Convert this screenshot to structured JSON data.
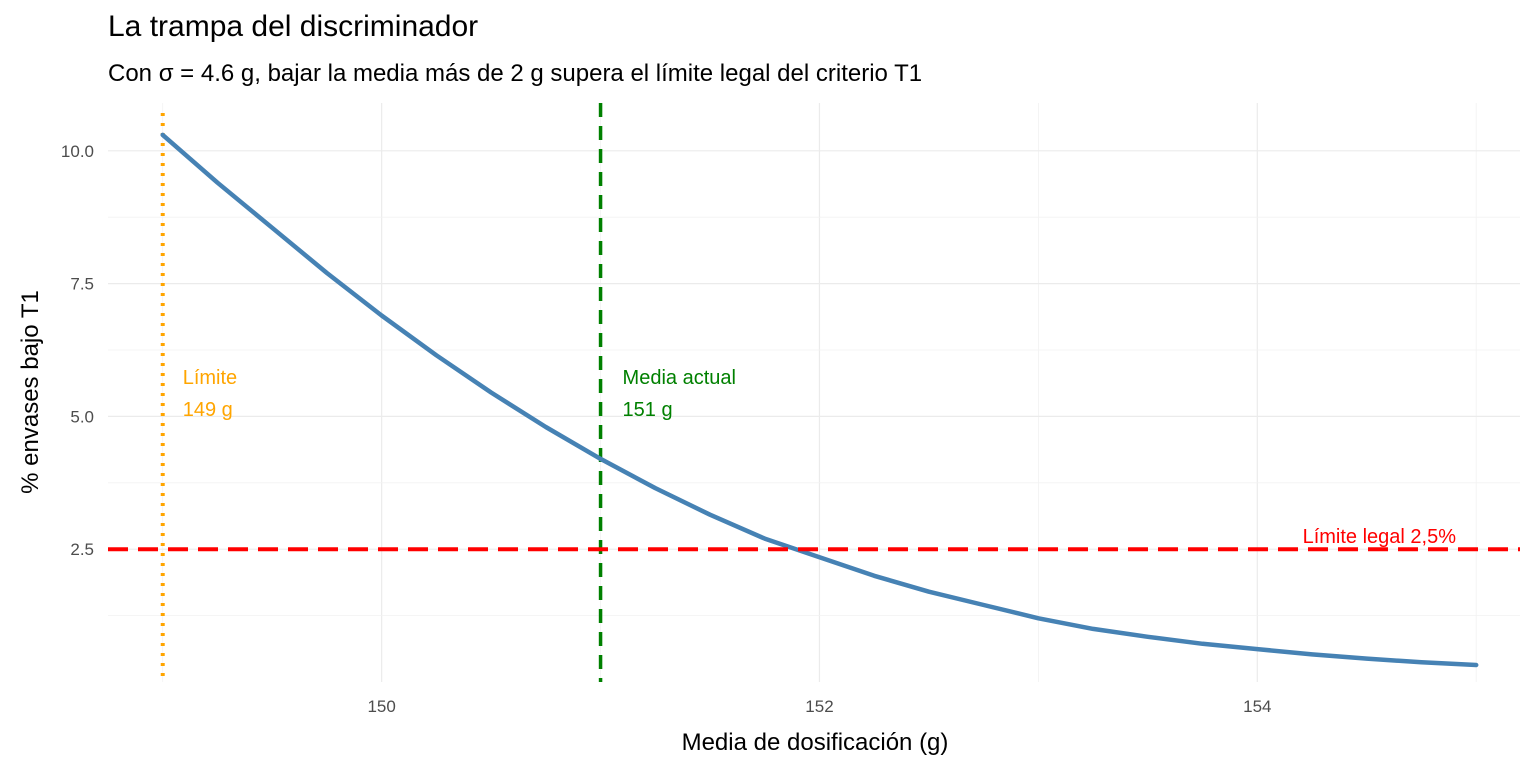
{
  "chart_data": {
    "type": "line",
    "title": "La trampa del discriminador",
    "subtitle": "Con σ = 4.6 g, bajar la media más de 2 g supera el límite legal del criterio T1",
    "xlabel": "Media de dosificación (g)",
    "ylabel": "% envases bajo T1",
    "xlim": [
      148.75,
      155.2
    ],
    "ylim": [
      0,
      10.9
    ],
    "x_ticks": [
      150,
      152,
      154
    ],
    "x_tick_labels": [
      "150",
      "152",
      "154"
    ],
    "y_ticks": [
      2.5,
      5.0,
      7.5,
      10.0
    ],
    "y_tick_labels": [
      "2.5",
      "5.0",
      "7.5",
      "10.0"
    ],
    "grid": true,
    "series": [
      {
        "color": "#4682B4",
        "x": [
          149.0,
          149.25,
          149.5,
          149.75,
          150.0,
          150.25,
          150.5,
          150.75,
          151.0,
          151.25,
          151.5,
          151.75,
          152.0,
          152.25,
          152.5,
          152.75,
          153.0,
          153.25,
          153.5,
          153.75,
          154.0,
          154.25,
          154.5,
          154.75,
          155.0
        ],
        "y": [
          10.3,
          9.4,
          8.55,
          7.7,
          6.9,
          6.15,
          5.45,
          4.8,
          4.2,
          3.65,
          3.15,
          2.7,
          2.35,
          2.0,
          1.7,
          1.45,
          1.2,
          1.0,
          0.85,
          0.72,
          0.62,
          0.52,
          0.44,
          0.37,
          0.32
        ]
      }
    ],
    "annotations": {
      "limit": {
        "x": 149,
        "color": "#FFA500",
        "line1": "Límite",
        "line2": "149 g",
        "label_y": 5.5
      },
      "mean": {
        "x": 151,
        "color": "#008000",
        "line1": "Media actual",
        "line2": "151 g",
        "label_y": 5.5
      },
      "legal": {
        "y": 2.5,
        "color": "#FF0000",
        "label": "Límite legal 2,5%"
      }
    }
  }
}
